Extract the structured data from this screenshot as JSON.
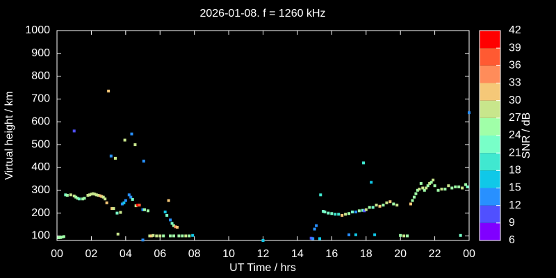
{
  "chart_data": {
    "type": "scatter",
    "title": "2026-01-08. f = 1260 kHz",
    "xlabel": "UT Time / hrs",
    "ylabel": "Virtual height / km",
    "xlim": [
      0,
      24
    ],
    "ylim": [
      80,
      1000
    ],
    "xticks": [
      {
        "value": 0,
        "label": "00"
      },
      {
        "value": 2,
        "label": "02"
      },
      {
        "value": 4,
        "label": "04"
      },
      {
        "value": 6,
        "label": "06"
      },
      {
        "value": 8,
        "label": "08"
      },
      10,
      12,
      14,
      16,
      18,
      20,
      22,
      {
        "value": 24,
        "label": "00"
      }
    ],
    "yticks": [
      100,
      200,
      300,
      400,
      500,
      600,
      700,
      800,
      900,
      1000
    ],
    "colorbar": {
      "label": "SNR / dB",
      "ticks": [
        6,
        9,
        12,
        15,
        18,
        21,
        24,
        27,
        30,
        33,
        36,
        39,
        42
      ],
      "colors": [
        "#8000ff",
        "#5050ff",
        "#2890ff",
        "#10c8e8",
        "#40e8d0",
        "#78ffc8",
        "#a0ffa8",
        "#c8e68c",
        "#f5c878",
        "#ff8c5a",
        "#ff5a32",
        "#ff0000"
      ]
    },
    "x": [
      0.1,
      0.2,
      0.3,
      0.4,
      0.5,
      0.6,
      0.8,
      1.0,
      1.1,
      1.2,
      1.3,
      1.5,
      1.6,
      1.8,
      1.9,
      2.0,
      2.1,
      2.2,
      2.3,
      2.4,
      2.5,
      2.6,
      2.7,
      2.8,
      2.9,
      3.2,
      3.3,
      3.5,
      3.7,
      3.8,
      3.9,
      4.0,
      4.2,
      4.3,
      4.4,
      4.6,
      4.7,
      4.8,
      5.0,
      5.1,
      5.3,
      5.4,
      5.5,
      5.6,
      5.8,
      6.0,
      6.2,
      6.3,
      6.4,
      6.5,
      6.6,
      6.7,
      6.8,
      6.9,
      7.0,
      7.1,
      7.3,
      7.5,
      7.7,
      7.9,
      6.6,
      6.8,
      1.0,
      3.0,
      3.15,
      3.4,
      3.55,
      3.95,
      4.35,
      4.55,
      5.05,
      5.0,
      12.0,
      14.8,
      14.9,
      15.0,
      15.1,
      15.3,
      15.35,
      15.5,
      15.6,
      15.8,
      16.0,
      16.2,
      16.4,
      16.6,
      16.8,
      17.0,
      17.2,
      17.4,
      17.6,
      17.8,
      17.9,
      17.85,
      18.0,
      18.2,
      18.3,
      18.4,
      18.6,
      18.8,
      19.0,
      19.2,
      19.4,
      19.6,
      19.8,
      17.0,
      17.4,
      18.5,
      20.0,
      20.2,
      20.4,
      20.6,
      20.7,
      20.8,
      20.9,
      21.0,
      21.1,
      21.2,
      21.3,
      21.4,
      21.5,
      21.6,
      21.7,
      21.8,
      21.9,
      22.0,
      22.2,
      22.4,
      22.6,
      22.8,
      23.0,
      23.2,
      23.4,
      23.6,
      23.8,
      23.9,
      24.0,
      23.5
    ],
    "y": [
      92,
      93,
      95,
      97,
      280,
      278,
      280,
      275,
      270,
      265,
      262,
      262,
      265,
      278,
      280,
      283,
      285,
      283,
      280,
      278,
      276,
      273,
      270,
      262,
      245,
      220,
      220,
      200,
      203,
      240,
      245,
      255,
      280,
      270,
      260,
      232,
      235,
      235,
      215,
      215,
      210,
      100,
      100,
      102,
      100,
      100,
      100,
      205,
      190,
      255,
      170,
      155,
      145,
      140,
      138,
      100,
      100,
      100,
      100,
      102,
      100,
      100,
      560,
      735,
      450,
      440,
      108,
      520,
      547,
      500,
      428,
      82,
      80,
      90,
      88,
      130,
      145,
      88,
      280,
      208,
      205,
      200,
      198,
      195,
      195,
      190,
      195,
      198,
      205,
      205,
      210,
      212,
      210,
      420,
      215,
      225,
      335,
      225,
      235,
      230,
      235,
      245,
      250,
      240,
      235,
      105,
      105,
      105,
      102,
      100,
      100,
      240,
      255,
      270,
      285,
      300,
      305,
      330,
      310,
      300,
      310,
      320,
      330,
      335,
      345,
      320,
      300,
      305,
      305,
      320,
      310,
      315,
      315,
      310,
      325,
      315,
      640,
      102
    ],
    "snr": [
      25,
      25,
      25,
      25,
      21,
      24,
      27,
      27,
      25,
      25,
      22,
      25,
      24,
      27,
      27,
      27,
      27,
      27,
      27,
      28,
      30,
      30,
      27,
      27,
      30,
      30,
      27,
      21,
      28,
      12,
      15,
      12,
      12,
      13,
      21,
      27,
      40,
      36,
      13,
      25,
      24,
      27,
      30,
      28,
      29,
      27,
      25,
      15,
      21,
      30,
      12,
      21,
      25,
      35,
      30,
      24,
      25,
      27,
      26,
      15,
      25,
      24,
      9,
      31,
      12,
      27,
      29,
      28,
      12,
      28,
      12,
      12,
      15,
      10,
      12,
      12,
      12,
      15,
      18,
      21,
      21,
      21,
      21,
      20,
      18,
      30,
      27,
      24,
      21,
      13,
      24,
      21,
      10,
      18,
      27,
      24,
      15,
      21,
      27,
      30,
      24,
      28,
      31,
      25,
      27,
      12,
      15,
      15,
      24,
      27,
      25,
      30,
      25,
      24,
      25,
      24,
      27,
      24,
      27,
      24,
      27,
      24,
      27,
      24,
      27,
      25,
      24,
      27,
      24,
      27,
      24,
      25,
      24,
      27,
      25,
      21,
      12,
      22
    ]
  }
}
